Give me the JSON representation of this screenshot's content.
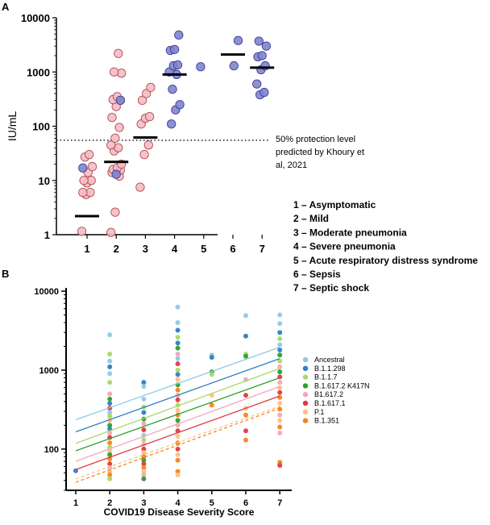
{
  "panel_a_label": "A",
  "panel_b_label": "B",
  "chart_data": [
    {
      "panel": "A",
      "type": "scatter",
      "ylabel": "IU/mL",
      "yscale": "log",
      "ylim": [
        1,
        10000
      ],
      "yticks": [
        "1",
        "10",
        "100",
        "1000",
        "10000"
      ],
      "categories": [
        "1",
        "2",
        "3",
        "4",
        "5",
        "6",
        "7"
      ],
      "threshold": {
        "value": 55,
        "label_lines": [
          "50% protection level",
          "predicted by Khoury et",
          "al, 2021"
        ]
      },
      "pink_points": [
        {
          "x": 1,
          "y": 1.15
        },
        {
          "x": 1,
          "y": 5.5
        },
        {
          "x": 1,
          "y": 6
        },
        {
          "x": 1,
          "y": 6
        },
        {
          "x": 1,
          "y": 9
        },
        {
          "x": 1,
          "y": 10
        },
        {
          "x": 1,
          "y": 10
        },
        {
          "x": 1,
          "y": 14
        },
        {
          "x": 1,
          "y": 18
        },
        {
          "x": 1,
          "y": 27
        },
        {
          "x": 1,
          "y": 30
        },
        {
          "x": 2,
          "y": 1.1
        },
        {
          "x": 2,
          "y": 2.6
        },
        {
          "x": 2,
          "y": 12
        },
        {
          "x": 2,
          "y": 14
        },
        {
          "x": 2,
          "y": 15
        },
        {
          "x": 2,
          "y": 15.5
        },
        {
          "x": 2,
          "y": 16
        },
        {
          "x": 2,
          "y": 17
        },
        {
          "x": 2,
          "y": 20
        },
        {
          "x": 2,
          "y": 35
        },
        {
          "x": 2,
          "y": 40
        },
        {
          "x": 2,
          "y": 45
        },
        {
          "x": 2,
          "y": 60
        },
        {
          "x": 2,
          "y": 95
        },
        {
          "x": 2,
          "y": 145
        },
        {
          "x": 2,
          "y": 230
        },
        {
          "x": 2,
          "y": 300
        },
        {
          "x": 2,
          "y": 310
        },
        {
          "x": 2,
          "y": 350
        },
        {
          "x": 2,
          "y": 950
        },
        {
          "x": 2,
          "y": 1000
        },
        {
          "x": 2,
          "y": 2200
        },
        {
          "x": 3,
          "y": 7.5
        },
        {
          "x": 3,
          "y": 30
        },
        {
          "x": 3,
          "y": 45
        },
        {
          "x": 3,
          "y": 110
        },
        {
          "x": 3,
          "y": 140
        },
        {
          "x": 3,
          "y": 150
        },
        {
          "x": 3,
          "y": 300
        },
        {
          "x": 3,
          "y": 400
        },
        {
          "x": 3,
          "y": 520
        }
      ],
      "blue_points": [
        {
          "x": 1,
          "y": 17
        },
        {
          "x": 2,
          "y": 13
        },
        {
          "x": 2,
          "y": 300
        },
        {
          "x": 4,
          "y": 110
        },
        {
          "x": 4,
          "y": 200
        },
        {
          "x": 4,
          "y": 250
        },
        {
          "x": 4,
          "y": 480
        },
        {
          "x": 4,
          "y": 900
        },
        {
          "x": 4,
          "y": 1000
        },
        {
          "x": 4,
          "y": 1300
        },
        {
          "x": 4,
          "y": 1350
        },
        {
          "x": 4,
          "y": 2500
        },
        {
          "x": 4,
          "y": 2600
        },
        {
          "x": 4,
          "y": 4800
        },
        {
          "x": 5,
          "y": 1250
        },
        {
          "x": 6,
          "y": 1300
        },
        {
          "x": 6,
          "y": 3800
        },
        {
          "x": 7,
          "y": 380
        },
        {
          "x": 7,
          "y": 420
        },
        {
          "x": 7,
          "y": 600
        },
        {
          "x": 7,
          "y": 1100
        },
        {
          "x": 7,
          "y": 1300
        },
        {
          "x": 7,
          "y": 1900
        },
        {
          "x": 7,
          "y": 2000
        },
        {
          "x": 7,
          "y": 3000
        },
        {
          "x": 7,
          "y": 3700
        }
      ],
      "medians": [
        {
          "x": 1,
          "y": 2.2
        },
        {
          "x": 2,
          "y": 22
        },
        {
          "x": 3,
          "y": 62
        },
        {
          "x": 4,
          "y": 900
        },
        {
          "x": 6,
          "y": 2100
        },
        {
          "x": 7,
          "y": 1200
        }
      ],
      "legend": [
        "1 – Asymptomatic",
        "2 – Mild",
        "3 – Moderate pneumonia",
        "4 – Severe pneumonia",
        "5 – Acute respiratory distress syndrome",
        "6 – Sepsis",
        "7 – Septic shock"
      ]
    },
    {
      "panel": "B",
      "type": "scatter",
      "xlabel": "COVID19 Disease Severity Score",
      "yscale": "log",
      "ylim": [
        30,
        11000
      ],
      "yticks": [
        "100",
        "1000",
        "10000"
      ],
      "xticks": [
        "1",
        "2",
        "3",
        "4",
        "5",
        "6",
        "7"
      ],
      "series": [
        {
          "name": "Ancestral",
          "color": "#8ecae6",
          "fit": [
            235,
            1950
          ]
        },
        {
          "name": "B.1.1.298",
          "color": "#2f7fc1",
          "fit": [
            165,
            1400
          ]
        },
        {
          "name": "B.1.1.7",
          "color": "#a6d96a",
          "fit": [
            118,
            1050
          ]
        },
        {
          "name": "B.1.617.2 K417N",
          "color": "#2ca02c",
          "fit": [
            95,
            800
          ]
        },
        {
          "name": "B1.617.2",
          "color": "#f4a6b8",
          "fit": [
            70,
            620
          ]
        },
        {
          "name": "B.1.617.1",
          "color": "#e03b3b",
          "fit": [
            55,
            470
          ]
        },
        {
          "name": "P.1",
          "color": "#fdc086",
          "fit": [
            42,
            350
          ]
        },
        {
          "name": "B.1.351",
          "color": "#f58518",
          "fit": [
            38,
            330
          ]
        }
      ],
      "points": [
        {
          "x": 1,
          "y": 53,
          "s": "B.1.1.298"
        },
        {
          "x": 2,
          "y": 2800,
          "s": "Ancestral"
        },
        {
          "x": 2,
          "y": 1600,
          "s": "B.1.1.7"
        },
        {
          "x": 2,
          "y": 1300,
          "s": "Ancestral"
        },
        {
          "x": 2,
          "y": 1100,
          "s": "B.1.1.298"
        },
        {
          "x": 2,
          "y": 900,
          "s": "Ancestral"
        },
        {
          "x": 2,
          "y": 700,
          "s": "B.1.1.7"
        },
        {
          "x": 2,
          "y": 500,
          "s": "B1.617.2"
        },
        {
          "x": 2,
          "y": 430,
          "s": "B.1.617.2 K417N"
        },
        {
          "x": 2,
          "y": 380,
          "s": "B.1.1.298"
        },
        {
          "x": 2,
          "y": 330,
          "s": "B.1.617.1"
        },
        {
          "x": 2,
          "y": 290,
          "s": "Ancestral"
        },
        {
          "x": 2,
          "y": 260,
          "s": "B.1.1.7"
        },
        {
          "x": 2,
          "y": 230,
          "s": "P.1"
        },
        {
          "x": 2,
          "y": 200,
          "s": "B.1.617.2 K417N"
        },
        {
          "x": 2,
          "y": 180,
          "s": "B.1.1.298"
        },
        {
          "x": 2,
          "y": 160,
          "s": "B1.617.2"
        },
        {
          "x": 2,
          "y": 140,
          "s": "B.1.617.1"
        },
        {
          "x": 2,
          "y": 120,
          "s": "B.1.351"
        },
        {
          "x": 2,
          "y": 105,
          "s": "B.1.1.7"
        },
        {
          "x": 2,
          "y": 95,
          "s": "P.1"
        },
        {
          "x": 2,
          "y": 85,
          "s": "B.1.617.2 K417N"
        },
        {
          "x": 2,
          "y": 75,
          "s": "B.1.351"
        },
        {
          "x": 2,
          "y": 65,
          "s": "B.1.617.1"
        },
        {
          "x": 2,
          "y": 58,
          "s": "B1.617.2"
        },
        {
          "x": 2,
          "y": 52,
          "s": "P.1"
        },
        {
          "x": 2,
          "y": 47,
          "s": "B.1.351"
        },
        {
          "x": 2,
          "y": 42,
          "s": "B.1.1.7"
        },
        {
          "x": 3,
          "y": 700,
          "s": "B.1.1.298"
        },
        {
          "x": 3,
          "y": 620,
          "s": "Ancestral"
        },
        {
          "x": 3,
          "y": 430,
          "s": "Ancestral"
        },
        {
          "x": 3,
          "y": 340,
          "s": "B.1.1.7"
        },
        {
          "x": 3,
          "y": 290,
          "s": "B.1.1.298"
        },
        {
          "x": 3,
          "y": 240,
          "s": "B.1.617.2 K417N"
        },
        {
          "x": 3,
          "y": 210,
          "s": "B1.617.2"
        },
        {
          "x": 3,
          "y": 175,
          "s": "B.1.617.1"
        },
        {
          "x": 3,
          "y": 150,
          "s": "Ancestral"
        },
        {
          "x": 3,
          "y": 130,
          "s": "B.1.1.7"
        },
        {
          "x": 3,
          "y": 115,
          "s": "B1.617.2"
        },
        {
          "x": 3,
          "y": 100,
          "s": "B.1.617.1"
        },
        {
          "x": 3,
          "y": 90,
          "s": "P.1"
        },
        {
          "x": 3,
          "y": 80,
          "s": "B.1.351"
        },
        {
          "x": 3,
          "y": 72,
          "s": "B.1.617.2 K417N"
        },
        {
          "x": 3,
          "y": 65,
          "s": "B.1.617.1"
        },
        {
          "x": 3,
          "y": 58,
          "s": "B.1.351"
        },
        {
          "x": 3,
          "y": 52,
          "s": "P.1"
        },
        {
          "x": 3,
          "y": 47,
          "s": "B1.617.2"
        },
        {
          "x": 3,
          "y": 42,
          "s": "B.1.617.2 K417N"
        },
        {
          "x": 4,
          "y": 6300,
          "s": "Ancestral"
        },
        {
          "x": 4,
          "y": 4000,
          "s": "Ancestral"
        },
        {
          "x": 4,
          "y": 3200,
          "s": "B.1.1.298"
        },
        {
          "x": 4,
          "y": 2600,
          "s": "B.1.1.7"
        },
        {
          "x": 4,
          "y": 2200,
          "s": "B.1.1.298"
        },
        {
          "x": 4,
          "y": 1900,
          "s": "B.1.617.2 K417N"
        },
        {
          "x": 4,
          "y": 1600,
          "s": "B1.617.2"
        },
        {
          "x": 4,
          "y": 1400,
          "s": "Ancestral"
        },
        {
          "x": 4,
          "y": 1200,
          "s": "B.1.617.1"
        },
        {
          "x": 4,
          "y": 1000,
          "s": "B.1.1.7"
        },
        {
          "x": 4,
          "y": 880,
          "s": "B.1.1.298"
        },
        {
          "x": 4,
          "y": 760,
          "s": "P.1"
        },
        {
          "x": 4,
          "y": 650,
          "s": "B.1.617.2 K417N"
        },
        {
          "x": 4,
          "y": 560,
          "s": "B.1.351"
        },
        {
          "x": 4,
          "y": 480,
          "s": "B1.617.2"
        },
        {
          "x": 4,
          "y": 420,
          "s": "B.1.617.1"
        },
        {
          "x": 4,
          "y": 360,
          "s": "B.1.1.7"
        },
        {
          "x": 4,
          "y": 310,
          "s": "P.1"
        },
        {
          "x": 4,
          "y": 270,
          "s": "B.1.351"
        },
        {
          "x": 4,
          "y": 230,
          "s": "B.1.617.2 K417N"
        },
        {
          "x": 4,
          "y": 200,
          "s": "B1.617.2"
        },
        {
          "x": 4,
          "y": 170,
          "s": "B.1.617.1"
        },
        {
          "x": 4,
          "y": 145,
          "s": "P.1"
        },
        {
          "x": 4,
          "y": 120,
          "s": "B.1.351"
        },
        {
          "x": 4,
          "y": 100,
          "s": "B.1.617.1"
        },
        {
          "x": 4,
          "y": 85,
          "s": "P.1"
        },
        {
          "x": 4,
          "y": 72,
          "s": "B.1.351"
        },
        {
          "x": 4,
          "y": 52,
          "s": "B.1.351"
        },
        {
          "x": 4,
          "y": 47,
          "s": "P.1"
        },
        {
          "x": 5,
          "y": 1550,
          "s": "Ancestral"
        },
        {
          "x": 5,
          "y": 1450,
          "s": "B.1.1.298"
        },
        {
          "x": 5,
          "y": 950,
          "s": "B.1.617.2 K417N"
        },
        {
          "x": 5,
          "y": 880,
          "s": "B.1.1.7"
        },
        {
          "x": 5,
          "y": 480,
          "s": "P.1"
        },
        {
          "x": 5,
          "y": 360,
          "s": "B.1.351"
        },
        {
          "x": 6,
          "y": 4900,
          "s": "Ancestral"
        },
        {
          "x": 6,
          "y": 2700,
          "s": "B.1.1.298"
        },
        {
          "x": 6,
          "y": 1600,
          "s": "B.1.1.7"
        },
        {
          "x": 6,
          "y": 1500,
          "s": "B.1.617.2 K417N"
        },
        {
          "x": 6,
          "y": 760,
          "s": "B1.617.2"
        },
        {
          "x": 6,
          "y": 480,
          "s": "B.1.617.1"
        },
        {
          "x": 6,
          "y": 330,
          "s": "P.1"
        },
        {
          "x": 6,
          "y": 270,
          "s": "B.1.351"
        },
        {
          "x": 6,
          "y": 170,
          "s": "B.1.617.1"
        },
        {
          "x": 6,
          "y": 130,
          "s": "B.1.351"
        },
        {
          "x": 7,
          "y": 5000,
          "s": "Ancestral"
        },
        {
          "x": 7,
          "y": 3900,
          "s": "Ancestral"
        },
        {
          "x": 7,
          "y": 3000,
          "s": "B.1.1.298"
        },
        {
          "x": 7,
          "y": 2500,
          "s": "B.1.1.7"
        },
        {
          "x": 7,
          "y": 2100,
          "s": "Ancestral"
        },
        {
          "x": 7,
          "y": 1800,
          "s": "B.1.1.298"
        },
        {
          "x": 7,
          "y": 1550,
          "s": "B.1.617.2 K417N"
        },
        {
          "x": 7,
          "y": 1300,
          "s": "B.1.1.7"
        },
        {
          "x": 7,
          "y": 1100,
          "s": "B1.617.2"
        },
        {
          "x": 7,
          "y": 950,
          "s": "B.1.617.2 K417N"
        },
        {
          "x": 7,
          "y": 820,
          "s": "B.1.617.1"
        },
        {
          "x": 7,
          "y": 700,
          "s": "B1.617.2"
        },
        {
          "x": 7,
          "y": 600,
          "s": "P.1"
        },
        {
          "x": 7,
          "y": 520,
          "s": "B.1.617.1"
        },
        {
          "x": 7,
          "y": 450,
          "s": "B.1.351"
        },
        {
          "x": 7,
          "y": 380,
          "s": "P.1"
        },
        {
          "x": 7,
          "y": 320,
          "s": "B.1.351"
        },
        {
          "x": 7,
          "y": 270,
          "s": "B1.617.2"
        },
        {
          "x": 7,
          "y": 230,
          "s": "P.1"
        },
        {
          "x": 7,
          "y": 190,
          "s": "B.1.351"
        },
        {
          "x": 7,
          "y": 160,
          "s": "B1.617.2"
        },
        {
          "x": 7,
          "y": 68,
          "s": "B.1.351"
        },
        {
          "x": 7,
          "y": 62,
          "s": "B.1.617.1"
        }
      ]
    }
  ]
}
